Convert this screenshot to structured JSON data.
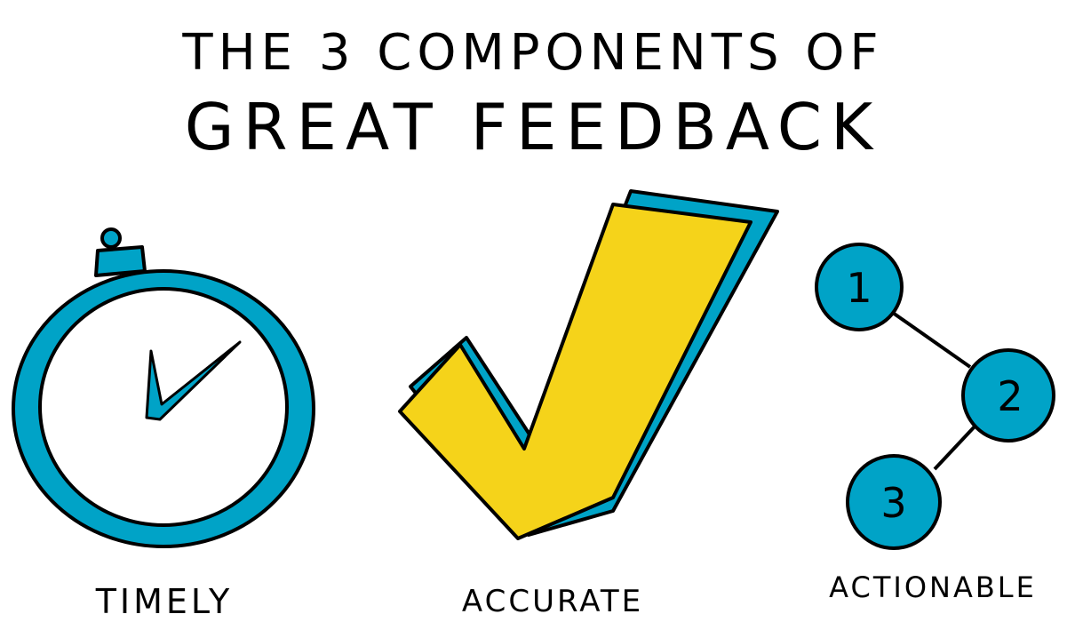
{
  "title": {
    "line1": "THE 3 COMPONENTS OF",
    "line2": "GREAT FEEDBACK"
  },
  "components": [
    {
      "label": "TIMELY",
      "icon": "stopwatch-icon"
    },
    {
      "label": "ACCURATE",
      "icon": "checkmark-icon"
    },
    {
      "label": "ACTIONABLE",
      "icon": "numbered-steps-icon",
      "steps": [
        "1",
        "2",
        "3"
      ]
    }
  ],
  "colors": {
    "blue": "#00a3c7",
    "yellow": "#f5d31a",
    "ink": "#000000"
  }
}
